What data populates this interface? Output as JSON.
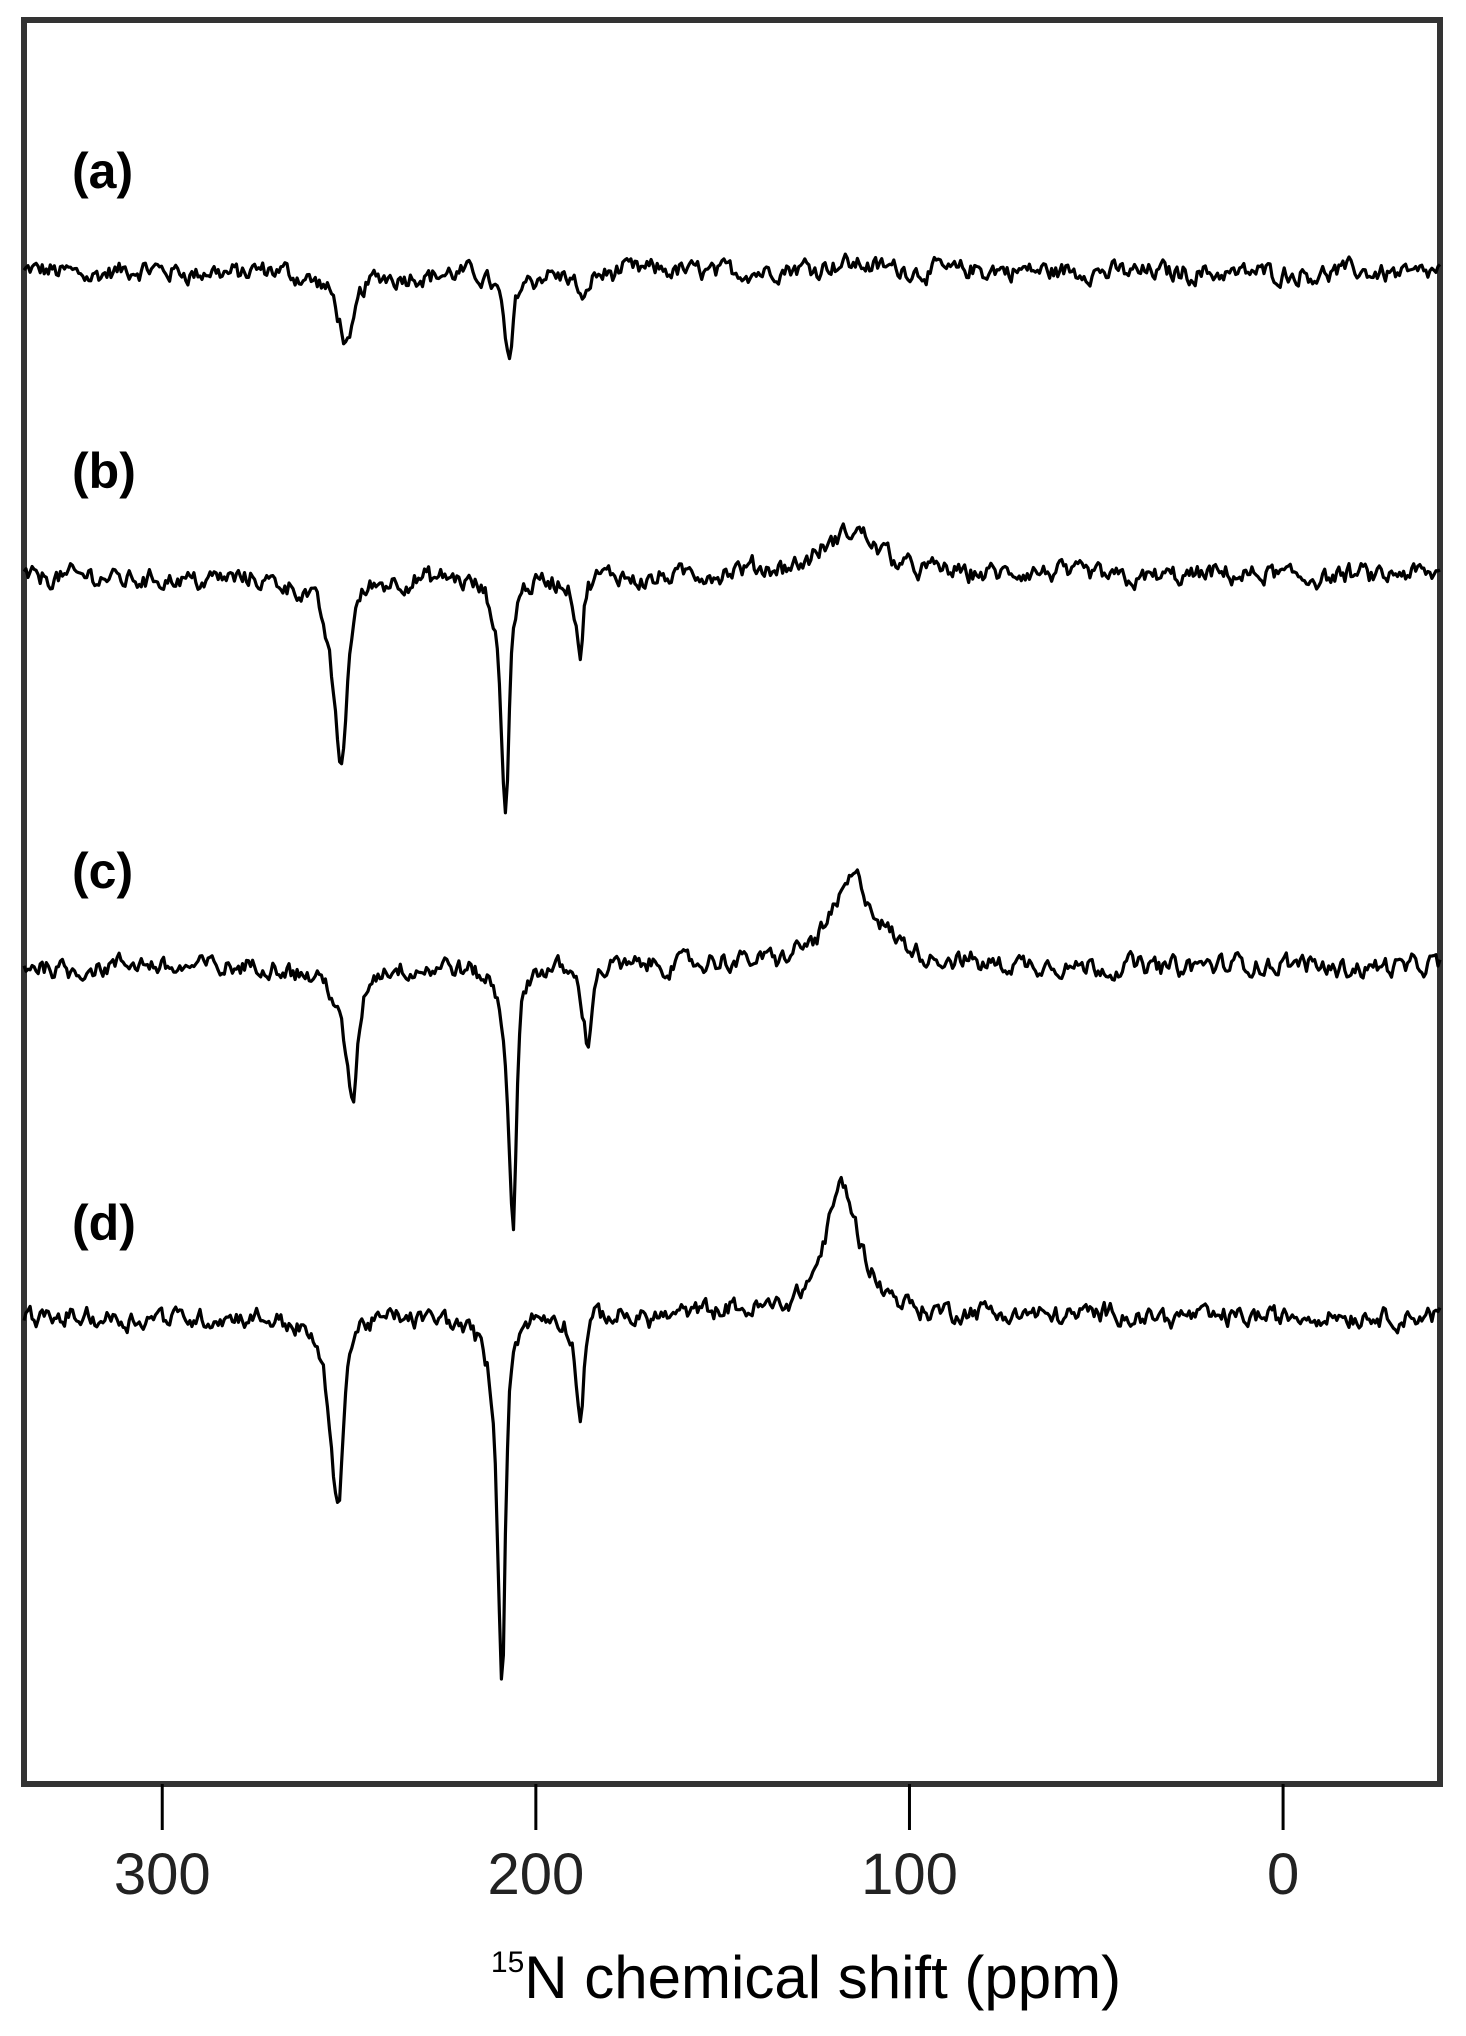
{
  "chart_data": {
    "type": "line",
    "title": "",
    "xlabel_sup": "15",
    "xlabel": "N chemical shift (ppm)",
    "ylabel": "",
    "xlim": [
      337,
      -42
    ],
    "x_reversed": true,
    "xticks": [
      300,
      200,
      100,
      0
    ],
    "xtick_labels": [
      "300",
      "200",
      "100",
      "0"
    ],
    "grid": false,
    "line_color": "#000000",
    "frame_color": "#333333",
    "series": [
      {
        "label": "(a)",
        "peaks": [
          {
            "ppm": 250,
            "intensity": -0.21,
            "width": 3
          },
          {
            "ppm": 207,
            "intensity": -0.26,
            "width": 1.5
          },
          {
            "ppm": 187,
            "intensity": -0.1,
            "width": 1.5
          },
          {
            "ppm": 118,
            "intensity": 0.03,
            "width": 15
          }
        ]
      },
      {
        "label": "(b)",
        "peaks": [
          {
            "ppm": 252,
            "intensity": -0.52,
            "width": 2.5
          },
          {
            "ppm": 208,
            "intensity": -0.65,
            "width": 1.5
          },
          {
            "ppm": 188,
            "intensity": -0.21,
            "width": 1.3
          },
          {
            "ppm": 115,
            "intensity": 0.12,
            "width": 14
          }
        ]
      },
      {
        "label": "(c)",
        "peaks": [
          {
            "ppm": 249,
            "intensity": -0.37,
            "width": 2.5
          },
          {
            "ppm": 206,
            "intensity": -0.7,
            "width": 1.5
          },
          {
            "ppm": 186,
            "intensity": -0.23,
            "width": 1.3
          },
          {
            "ppm": 115,
            "intensity": 0.24,
            "width": 10
          }
        ]
      },
      {
        "label": "(d)",
        "peaks": [
          {
            "ppm": 253,
            "intensity": -0.55,
            "width": 2.2
          },
          {
            "ppm": 209,
            "intensity": -1.0,
            "width": 1.4
          },
          {
            "ppm": 188,
            "intensity": -0.31,
            "width": 1.2
          },
          {
            "ppm": 118,
            "intensity": 0.36,
            "width": 8
          }
        ]
      }
    ]
  }
}
